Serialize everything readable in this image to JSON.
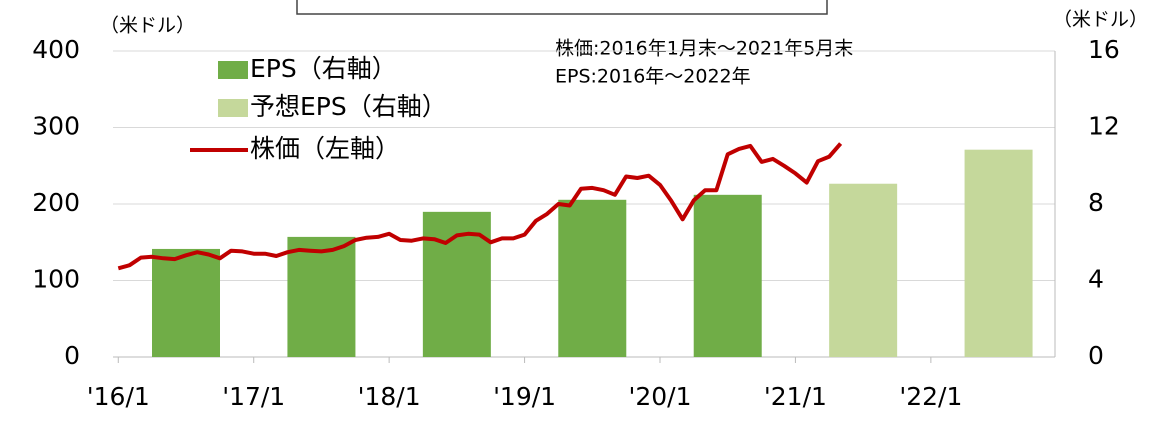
{
  "chart_data": {
    "type": "bar-line",
    "y_label": "（米ドル）",
    "y2_label": "（米ドル）",
    "annotation": [
      "株価:2016年1月末～2021年5月末",
      "EPS:2016年～2022年"
    ],
    "xlim": [
      "2015-12",
      "2022-12"
    ],
    "xticks": [
      {
        "value": "2016-01",
        "label": "'16/1"
      },
      {
        "value": "2017-01",
        "label": "'17/1"
      },
      {
        "value": "2018-01",
        "label": "'18/1"
      },
      {
        "value": "2019-01",
        "label": "'19/1"
      },
      {
        "value": "2020-01",
        "label": "'20/1"
      },
      {
        "value": "2021-01",
        "label": "'21/1"
      },
      {
        "value": "2022-01",
        "label": "'22/1"
      }
    ],
    "ylim": [
      0,
      400
    ],
    "yticks": [
      0,
      100,
      200,
      300,
      400
    ],
    "y2lim": [
      0,
      16
    ],
    "y2ticks": [
      0,
      4,
      8,
      12,
      16
    ],
    "bar_x": [
      "2016",
      "2017",
      "2018",
      "2019",
      "2020",
      "2021",
      "2022"
    ],
    "bar_series": [
      {
        "name": "EPS（右軸）",
        "color": "#70ad47",
        "axis": "y2",
        "values": [
          5.65,
          6.28,
          7.59,
          8.22,
          8.48,
          null,
          null
        ]
      },
      {
        "name": "予想EPS（右軸）",
        "color": "#c5d89b",
        "axis": "y2",
        "values": [
          null,
          null,
          null,
          null,
          null,
          9.06,
          10.84
        ]
      }
    ],
    "line_series": {
      "name": "株価（左軸）",
      "color": "#c00000",
      "x": [
        "2016-01",
        "2016-02",
        "2016-03",
        "2016-04",
        "2016-05",
        "2016-06",
        "2016-07",
        "2016-08",
        "2016-09",
        "2016-10",
        "2016-11",
        "2016-12",
        "2017-01",
        "2017-02",
        "2017-03",
        "2017-04",
        "2017-05",
        "2017-06",
        "2017-07",
        "2017-08",
        "2017-09",
        "2017-10",
        "2017-11",
        "2017-12",
        "2018-01",
        "2018-02",
        "2018-03",
        "2018-04",
        "2018-05",
        "2018-06",
        "2018-07",
        "2018-08",
        "2018-09",
        "2018-10",
        "2018-11",
        "2018-12",
        "2019-01",
        "2019-02",
        "2019-03",
        "2019-04",
        "2019-05",
        "2019-06",
        "2019-07",
        "2019-08",
        "2019-09",
        "2019-10",
        "2019-11",
        "2019-12",
        "2020-01",
        "2020-02",
        "2020-03",
        "2020-04",
        "2020-05",
        "2020-06",
        "2020-07",
        "2020-08",
        "2020-09",
        "2020-10",
        "2020-11",
        "2020-12",
        "2021-01",
        "2021-02",
        "2021-03",
        "2021-04",
        "2021-05"
      ],
      "values": [
        116,
        120,
        130,
        131,
        129,
        128,
        133,
        137,
        134,
        129,
        139,
        138,
        135,
        135,
        132,
        137,
        140,
        139,
        138,
        140,
        145,
        153,
        156,
        157,
        161,
        153,
        152,
        155,
        154,
        149,
        159,
        161,
        160,
        150,
        155,
        155,
        160,
        178,
        187,
        200,
        198,
        220,
        221,
        218,
        212,
        236,
        234,
        237,
        225,
        204,
        180,
        205,
        218,
        218,
        265,
        272,
        276,
        255,
        259,
        250,
        240,
        228,
        256,
        262,
        279
      ]
    }
  }
}
